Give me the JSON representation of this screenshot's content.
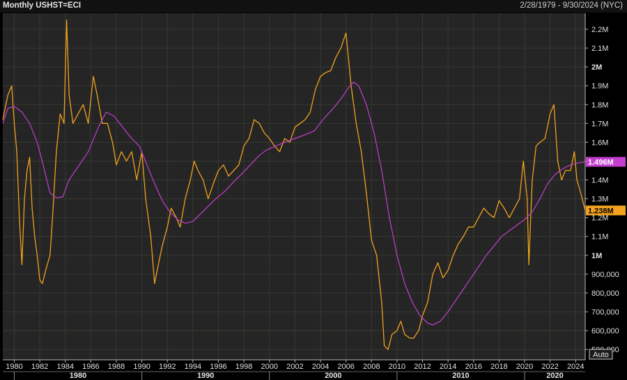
{
  "header": {
    "title": "Monthly USHST=ECI",
    "date_range": "2/28/1979 - 9/30/2024 (NYC)"
  },
  "colors": {
    "background": "#252525",
    "grid": "#363a30",
    "price_line": "#f2a21e",
    "average_line": "#c43fd0",
    "price_tag": "#f2a21e",
    "average_tag": "#c43fd0"
  },
  "chart_data": {
    "type": "line",
    "x_unit": "year",
    "y_unit": "housing starts",
    "xlim": [
      1979.1,
      2024.75
    ],
    "ylim": [
      445000,
      2285000
    ],
    "y_ticks": [
      {
        "value": 500000,
        "label": "500,000",
        "bold": false
      },
      {
        "value": 600000,
        "label": "600,000",
        "bold": false
      },
      {
        "value": 700000,
        "label": "700,000",
        "bold": false
      },
      {
        "value": 800000,
        "label": "800,000",
        "bold": false
      },
      {
        "value": 900000,
        "label": "900,000",
        "bold": false
      },
      {
        "value": 1000000,
        "label": "1M",
        "bold": true
      },
      {
        "value": 1100000,
        "label": "1.1M",
        "bold": false
      },
      {
        "value": 1200000,
        "label": "1.2M",
        "bold": false
      },
      {
        "value": 1300000,
        "label": "1.3M",
        "bold": false
      },
      {
        "value": 1400000,
        "label": "1.4M",
        "bold": false
      },
      {
        "value": 1500000,
        "label": "1.5M",
        "bold": false
      },
      {
        "value": 1600000,
        "label": "1.6M",
        "bold": false
      },
      {
        "value": 1700000,
        "label": "1.7M",
        "bold": false
      },
      {
        "value": 1800000,
        "label": "1.8M",
        "bold": false
      },
      {
        "value": 1900000,
        "label": "1.9M",
        "bold": false
      },
      {
        "value": 2000000,
        "label": "2M",
        "bold": true
      },
      {
        "value": 2100000,
        "label": "2.1M",
        "bold": false
      },
      {
        "value": 2200000,
        "label": "2.2M",
        "bold": false
      }
    ],
    "x_ticks": [
      {
        "value": 1980,
        "label": "1980"
      },
      {
        "value": 1982,
        "label": "1982"
      },
      {
        "value": 1984,
        "label": "1984"
      },
      {
        "value": 1986,
        "label": "1986"
      },
      {
        "value": 1988,
        "label": "1988"
      },
      {
        "value": 1990,
        "label": "1990"
      },
      {
        "value": 1992,
        "label": "1992"
      },
      {
        "value": 1994,
        "label": "1994"
      },
      {
        "value": 1996,
        "label": "1996"
      },
      {
        "value": 1998,
        "label": "1998"
      },
      {
        "value": 2000,
        "label": "2000"
      },
      {
        "value": 2002,
        "label": "2002"
      },
      {
        "value": 2004,
        "label": "2004"
      },
      {
        "value": 2006,
        "label": "2006"
      },
      {
        "value": 2008,
        "label": "2008"
      },
      {
        "value": 2010,
        "label": "2010"
      },
      {
        "value": 2012,
        "label": "2012"
      },
      {
        "value": 2014,
        "label": "2014"
      },
      {
        "value": 2016,
        "label": "2016"
      },
      {
        "value": 2018,
        "label": "2018"
      },
      {
        "value": 2020,
        "label": "2020"
      },
      {
        "value": 2022,
        "label": "2022"
      },
      {
        "value": 2024,
        "label": "2024"
      }
    ],
    "decade_labels": [
      {
        "start": 1980,
        "label": "1980"
      },
      {
        "start": 1990,
        "label": "1990"
      },
      {
        "start": 2000,
        "label": "2000"
      },
      {
        "start": 2010,
        "label": "2010"
      },
      {
        "start": 2020,
        "label": "2020"
      }
    ],
    "series": [
      {
        "role": "price",
        "points": [
          [
            1979.1,
            1720000
          ],
          [
            1979.5,
            1850000
          ],
          [
            1979.8,
            1900000
          ],
          [
            1980.0,
            1700000
          ],
          [
            1980.2,
            1550000
          ],
          [
            1980.4,
            1200000
          ],
          [
            1980.6,
            950000
          ],
          [
            1980.8,
            1300000
          ],
          [
            1981.0,
            1450000
          ],
          [
            1981.2,
            1520000
          ],
          [
            1981.4,
            1250000
          ],
          [
            1981.6,
            1100000
          ],
          [
            1981.8,
            1000000
          ],
          [
            1982.0,
            870000
          ],
          [
            1982.2,
            850000
          ],
          [
            1982.5,
            930000
          ],
          [
            1982.8,
            1000000
          ],
          [
            1983.0,
            1200000
          ],
          [
            1983.3,
            1550000
          ],
          [
            1983.6,
            1750000
          ],
          [
            1983.9,
            1700000
          ],
          [
            1984.1,
            2250000
          ],
          [
            1984.3,
            1850000
          ],
          [
            1984.6,
            1700000
          ],
          [
            1985.0,
            1750000
          ],
          [
            1985.4,
            1800000
          ],
          [
            1985.8,
            1700000
          ],
          [
            1986.2,
            1950000
          ],
          [
            1986.5,
            1850000
          ],
          [
            1986.9,
            1700000
          ],
          [
            1987.3,
            1700000
          ],
          [
            1987.7,
            1600000
          ],
          [
            1988.0,
            1480000
          ],
          [
            1988.4,
            1550000
          ],
          [
            1988.8,
            1500000
          ],
          [
            1989.2,
            1550000
          ],
          [
            1989.6,
            1400000
          ],
          [
            1990.0,
            1550000
          ],
          [
            1990.3,
            1300000
          ],
          [
            1990.7,
            1100000
          ],
          [
            1991.0,
            850000
          ],
          [
            1991.2,
            920000
          ],
          [
            1991.6,
            1050000
          ],
          [
            1992.0,
            1150000
          ],
          [
            1992.3,
            1250000
          ],
          [
            1992.7,
            1200000
          ],
          [
            1993.0,
            1150000
          ],
          [
            1993.4,
            1300000
          ],
          [
            1993.8,
            1400000
          ],
          [
            1994.1,
            1500000
          ],
          [
            1994.4,
            1450000
          ],
          [
            1994.8,
            1400000
          ],
          [
            1995.2,
            1300000
          ],
          [
            1995.6,
            1380000
          ],
          [
            1996.0,
            1450000
          ],
          [
            1996.4,
            1480000
          ],
          [
            1996.8,
            1420000
          ],
          [
            1997.2,
            1450000
          ],
          [
            1997.6,
            1480000
          ],
          [
            1998.0,
            1580000
          ],
          [
            1998.4,
            1620000
          ],
          [
            1998.8,
            1720000
          ],
          [
            1999.2,
            1700000
          ],
          [
            1999.6,
            1650000
          ],
          [
            2000.0,
            1620000
          ],
          [
            2000.4,
            1580000
          ],
          [
            2000.8,
            1550000
          ],
          [
            2001.2,
            1620000
          ],
          [
            2001.6,
            1600000
          ],
          [
            2002.0,
            1680000
          ],
          [
            2002.4,
            1700000
          ],
          [
            2002.8,
            1720000
          ],
          [
            2003.2,
            1760000
          ],
          [
            2003.6,
            1880000
          ],
          [
            2004.0,
            1950000
          ],
          [
            2004.4,
            1970000
          ],
          [
            2004.8,
            1980000
          ],
          [
            2005.2,
            2050000
          ],
          [
            2005.6,
            2100000
          ],
          [
            2006.0,
            2180000
          ],
          [
            2006.4,
            1900000
          ],
          [
            2006.8,
            1700000
          ],
          [
            2007.2,
            1550000
          ],
          [
            2007.6,
            1330000
          ],
          [
            2008.0,
            1080000
          ],
          [
            2008.4,
            1000000
          ],
          [
            2008.8,
            750000
          ],
          [
            2009.0,
            520000
          ],
          [
            2009.3,
            500000
          ],
          [
            2009.6,
            580000
          ],
          [
            2010.0,
            600000
          ],
          [
            2010.3,
            650000
          ],
          [
            2010.6,
            580000
          ],
          [
            2011.0,
            560000
          ],
          [
            2011.3,
            560000
          ],
          [
            2011.7,
            600000
          ],
          [
            2012.0,
            680000
          ],
          [
            2012.4,
            750000
          ],
          [
            2012.8,
            900000
          ],
          [
            2013.2,
            960000
          ],
          [
            2013.6,
            880000
          ],
          [
            2014.0,
            920000
          ],
          [
            2014.4,
            1000000
          ],
          [
            2014.8,
            1060000
          ],
          [
            2015.2,
            1100000
          ],
          [
            2015.6,
            1150000
          ],
          [
            2016.0,
            1150000
          ],
          [
            2016.4,
            1200000
          ],
          [
            2016.8,
            1250000
          ],
          [
            2017.2,
            1220000
          ],
          [
            2017.6,
            1200000
          ],
          [
            2018.0,
            1290000
          ],
          [
            2018.4,
            1250000
          ],
          [
            2018.8,
            1200000
          ],
          [
            2019.2,
            1250000
          ],
          [
            2019.6,
            1300000
          ],
          [
            2019.9,
            1500000
          ],
          [
            2020.2,
            1300000
          ],
          [
            2020.33,
            950000
          ],
          [
            2020.6,
            1400000
          ],
          [
            2020.9,
            1580000
          ],
          [
            2021.2,
            1600000
          ],
          [
            2021.6,
            1620000
          ],
          [
            2022.0,
            1750000
          ],
          [
            2022.3,
            1800000
          ],
          [
            2022.6,
            1500000
          ],
          [
            2022.9,
            1400000
          ],
          [
            2023.2,
            1450000
          ],
          [
            2023.6,
            1450000
          ],
          [
            2023.9,
            1550000
          ],
          [
            2024.1,
            1400000
          ],
          [
            2024.4,
            1330000
          ],
          [
            2024.75,
            1238000
          ]
        ]
      },
      {
        "role": "moving_average",
        "points": [
          [
            1979.1,
            1700000
          ],
          [
            1979.5,
            1780000
          ],
          [
            1980.0,
            1790000
          ],
          [
            1980.6,
            1760000
          ],
          [
            1981.2,
            1700000
          ],
          [
            1981.8,
            1600000
          ],
          [
            1982.3,
            1470000
          ],
          [
            1982.8,
            1330000
          ],
          [
            1983.3,
            1305000
          ],
          [
            1983.8,
            1310000
          ],
          [
            1984.3,
            1400000
          ],
          [
            1985.0,
            1470000
          ],
          [
            1985.8,
            1550000
          ],
          [
            1986.6,
            1680000
          ],
          [
            1987.2,
            1760000
          ],
          [
            1987.8,
            1740000
          ],
          [
            1988.5,
            1680000
          ],
          [
            1989.2,
            1620000
          ],
          [
            1989.8,
            1580000
          ],
          [
            1990.4,
            1480000
          ],
          [
            1991.0,
            1380000
          ],
          [
            1991.6,
            1290000
          ],
          [
            1992.2,
            1230000
          ],
          [
            1992.8,
            1190000
          ],
          [
            1993.4,
            1170000
          ],
          [
            1994.0,
            1180000
          ],
          [
            1994.6,
            1220000
          ],
          [
            1995.2,
            1260000
          ],
          [
            1995.8,
            1300000
          ],
          [
            1996.5,
            1340000
          ],
          [
            1997.2,
            1390000
          ],
          [
            1997.8,
            1430000
          ],
          [
            1998.5,
            1480000
          ],
          [
            1999.2,
            1530000
          ],
          [
            1999.8,
            1560000
          ],
          [
            2000.5,
            1580000
          ],
          [
            2001.2,
            1600000
          ],
          [
            2002.0,
            1620000
          ],
          [
            2002.8,
            1640000
          ],
          [
            2003.5,
            1660000
          ],
          [
            2004.2,
            1720000
          ],
          [
            2005.0,
            1780000
          ],
          [
            2005.6,
            1830000
          ],
          [
            2006.2,
            1890000
          ],
          [
            2006.6,
            1920000
          ],
          [
            2007.0,
            1900000
          ],
          [
            2007.6,
            1800000
          ],
          [
            2008.2,
            1650000
          ],
          [
            2008.8,
            1450000
          ],
          [
            2009.4,
            1200000
          ],
          [
            2010.0,
            1000000
          ],
          [
            2010.6,
            850000
          ],
          [
            2011.2,
            750000
          ],
          [
            2011.8,
            680000
          ],
          [
            2012.4,
            640000
          ],
          [
            2012.8,
            630000
          ],
          [
            2013.4,
            650000
          ],
          [
            2014.0,
            700000
          ],
          [
            2014.6,
            760000
          ],
          [
            2015.2,
            820000
          ],
          [
            2015.8,
            880000
          ],
          [
            2016.4,
            940000
          ],
          [
            2017.0,
            1000000
          ],
          [
            2017.6,
            1050000
          ],
          [
            2018.2,
            1100000
          ],
          [
            2018.8,
            1130000
          ],
          [
            2019.4,
            1160000
          ],
          [
            2020.0,
            1190000
          ],
          [
            2020.6,
            1230000
          ],
          [
            2021.2,
            1300000
          ],
          [
            2021.8,
            1380000
          ],
          [
            2022.4,
            1430000
          ],
          [
            2023.0,
            1460000
          ],
          [
            2023.6,
            1480000
          ],
          [
            2024.2,
            1490000
          ],
          [
            2024.75,
            1496000
          ]
        ]
      }
    ],
    "last_value_tags": [
      {
        "role": "moving_average",
        "value": 1496000,
        "label": "1.496M"
      },
      {
        "role": "price",
        "value": 1238000,
        "label": "1.238M"
      }
    ],
    "auto_label": "Auto"
  }
}
